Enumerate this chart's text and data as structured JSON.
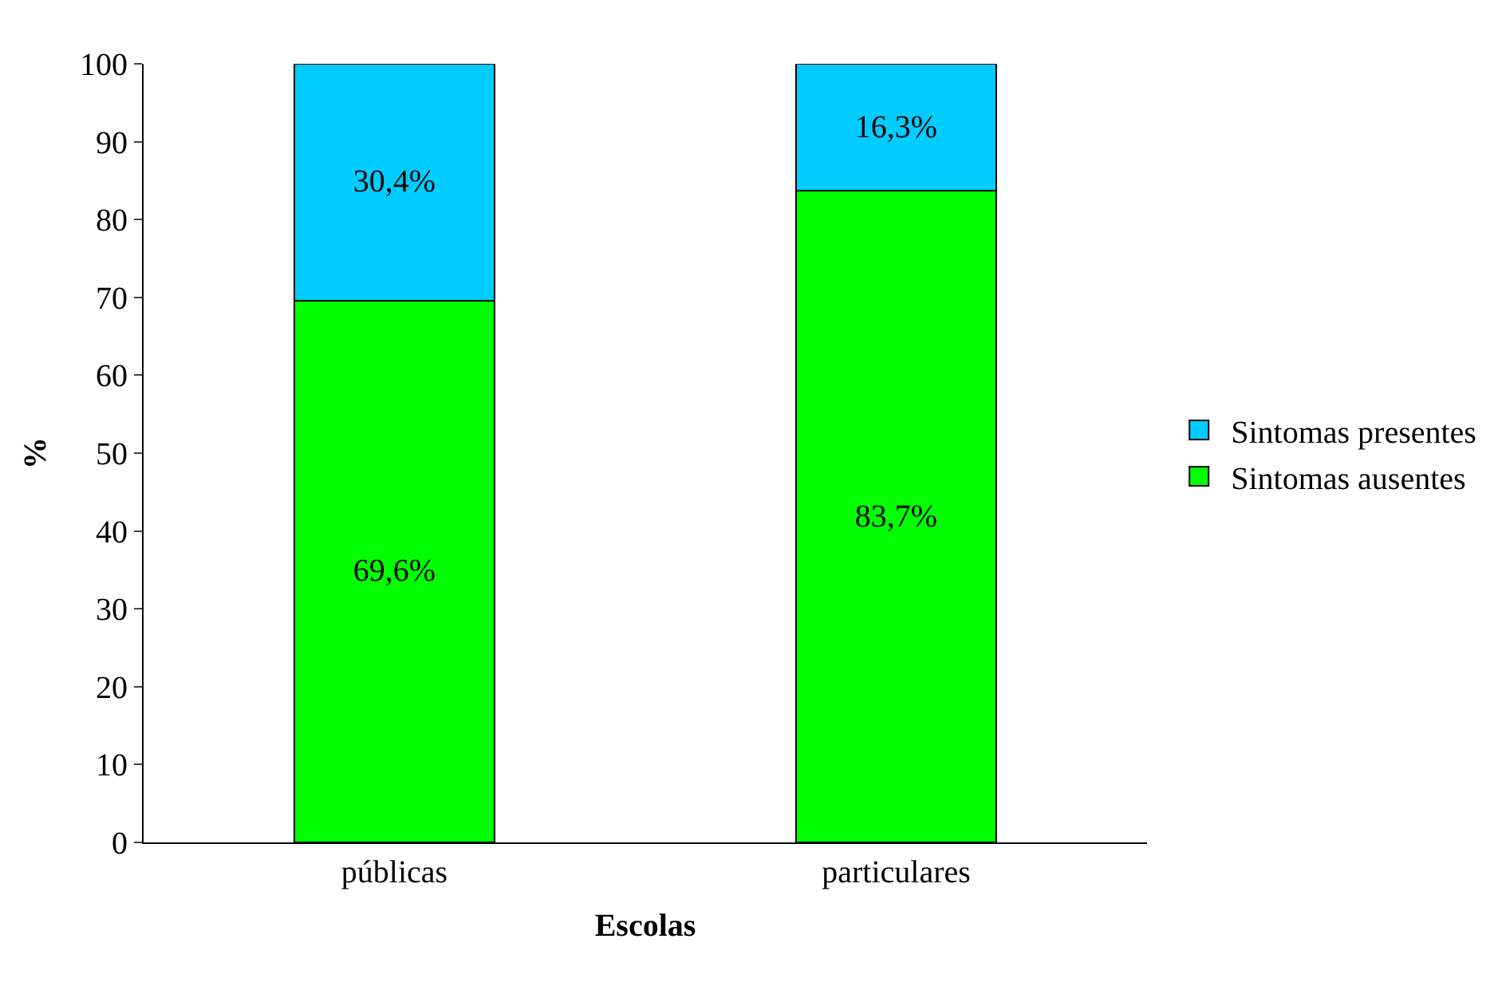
{
  "chart_data": {
    "type": "bar",
    "stacked": true,
    "xlabel": "Escolas",
    "ylabel": "%",
    "categories": [
      "públicas",
      "particulares"
    ],
    "series": [
      {
        "name": "Sintomas ausentes",
        "color": "#00ff00",
        "values": [
          69.6,
          83.7
        ],
        "value_labels": [
          "69,6%",
          "83,7%"
        ]
      },
      {
        "name": "Sintomas presentes",
        "color": "#00ccff",
        "values": [
          30.4,
          16.3
        ],
        "value_labels": [
          "30,4%",
          "16,3%"
        ]
      }
    ],
    "ylim": [
      0,
      100
    ],
    "yticks": [
      0,
      10,
      20,
      30,
      40,
      50,
      60,
      70,
      80,
      90,
      100
    ],
    "legend": "right"
  }
}
